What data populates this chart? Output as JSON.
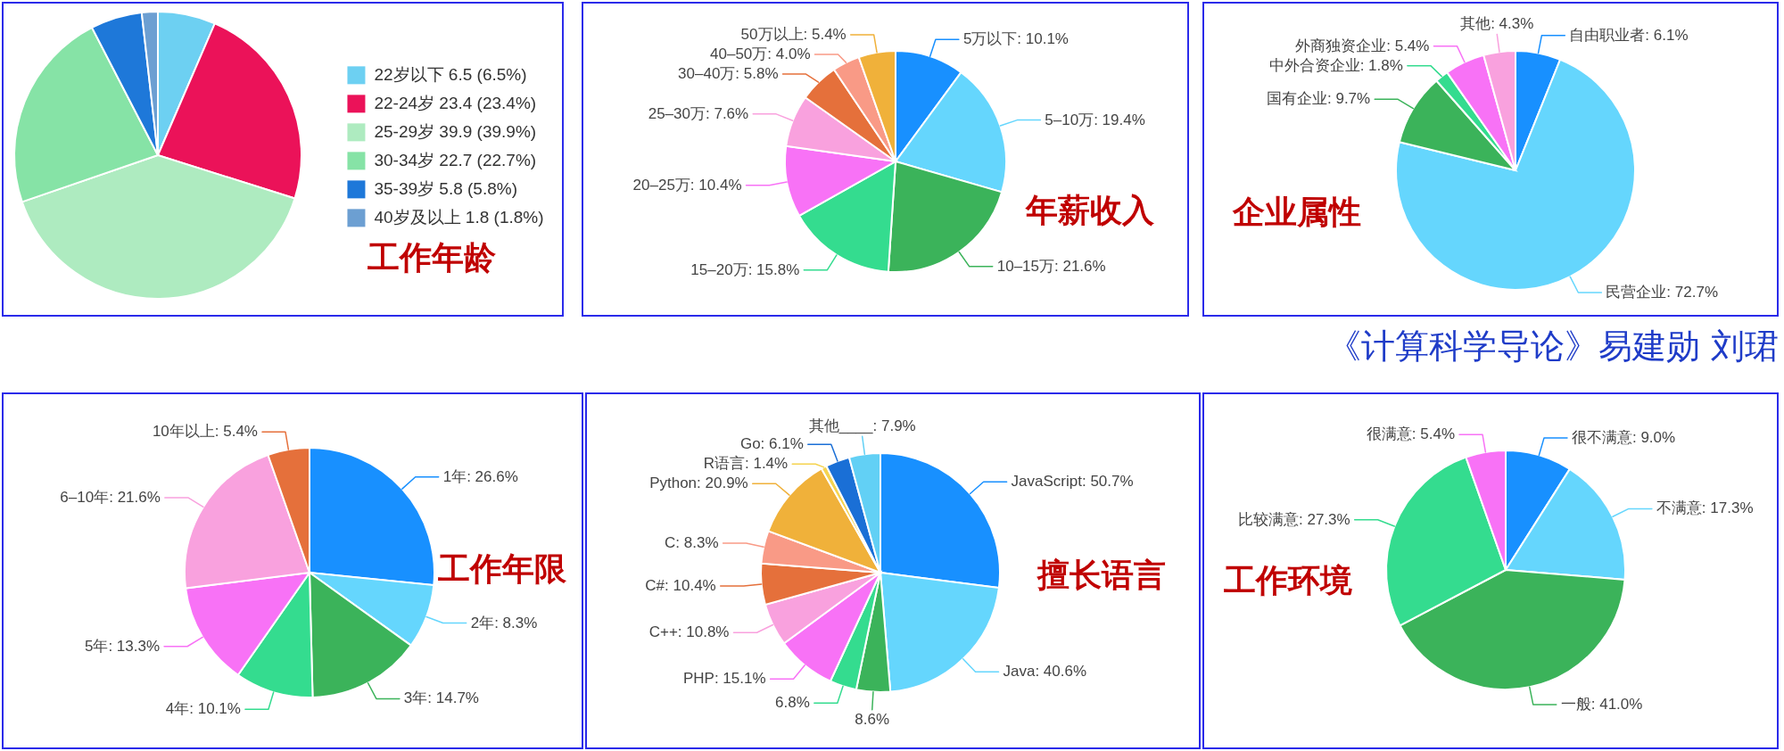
{
  "chart_data": [
    {
      "type": "pie",
      "title": "工作年龄",
      "categories": [
        "22岁以下",
        "22-24岁",
        "25-29岁",
        "30-34岁",
        "35-39岁",
        "40岁及以上"
      ],
      "values": [
        6.5,
        23.4,
        39.9,
        22.7,
        5.8,
        1.8
      ],
      "value_labels": [
        "6.5 (6.5%)",
        "23.4 (23.4%)",
        "39.9 (39.9%)",
        "22.7 (22.7%)",
        "5.8 (5.8%)",
        "1.8 (1.8%)"
      ],
      "colors": [
        "#6dd0f2",
        "#eb1259",
        "#aeebc0",
        "#86e3a6",
        "#1e78d9",
        "#6c9fd2"
      ],
      "legend": "right"
    },
    {
      "type": "pie",
      "title": "年薪收入",
      "categories": [
        "5万以下",
        "5–10万",
        "10–15万",
        "15–20万",
        "20–25万",
        "25–30万",
        "30–40万",
        "40–50万",
        "50万以上"
      ],
      "values": [
        10.1,
        19.4,
        21.6,
        15.8,
        10.4,
        7.6,
        5.8,
        4.0,
        5.4
      ],
      "value_labels": [
        "10.1%",
        "19.4%",
        "21.6%",
        "15.8%",
        "10.4%",
        "7.6%",
        "5.8%",
        "4.0%",
        "5.4%"
      ],
      "colors": [
        "#1890ff",
        "#65d6fd",
        "#3bb35a",
        "#34dc8f",
        "#f872f6",
        "#f9a1de",
        "#e5703b",
        "#f99a86",
        "#f0b13a"
      ]
    },
    {
      "type": "pie",
      "title": "企业属性",
      "categories": [
        "自由职业者",
        "民营企业",
        "国有企业",
        "中外合资企业",
        "外商独资企业",
        "其他"
      ],
      "values": [
        6.1,
        72.7,
        9.7,
        1.8,
        5.4,
        4.3
      ],
      "value_labels": [
        "6.1%",
        "72.7%",
        "9.7%",
        "1.8%",
        "5.4%",
        "4.3%"
      ],
      "colors": [
        "#1890ff",
        "#65d6fd",
        "#3bb35a",
        "#34dc8f",
        "#f872f6",
        "#f9a1de"
      ],
      "annotations": [
        "《计算科学导论》易建勋 刘珺"
      ]
    },
    {
      "type": "pie",
      "title": "工作年限",
      "categories": [
        "1年",
        "2年",
        "3年",
        "4年",
        "5年",
        "6–10年",
        "10年以上"
      ],
      "values": [
        26.6,
        8.3,
        14.7,
        10.1,
        13.3,
        21.6,
        5.4
      ],
      "value_labels": [
        "26.6%",
        "8.3%",
        "14.7%",
        "10.1%",
        "13.3%",
        "21.6%",
        "5.4%"
      ],
      "colors": [
        "#1890ff",
        "#65d6fd",
        "#3bb35a",
        "#34dc8f",
        "#f872f6",
        "#f9a1de",
        "#e5703b"
      ]
    },
    {
      "type": "pie",
      "title": "擅长语言",
      "categories": [
        "JavaScript",
        "Java",
        null,
        null,
        "PHP",
        "C++",
        "C#",
        "C",
        "Python",
        "R语言",
        "Go",
        "其他____"
      ],
      "values": [
        50.7,
        40.6,
        8.6,
        6.8,
        15.1,
        10.8,
        10.4,
        8.3,
        20.9,
        1.4,
        6.1,
        7.9
      ],
      "value_labels": [
        "50.7%",
        "40.6%",
        "8.6%",
        "6.8%",
        "15.1%",
        "10.8%",
        "10.4%",
        "8.3%",
        "20.9%",
        "1.4%",
        "6.1%",
        "7.9%"
      ],
      "colors": [
        "#1890ff",
        "#65d6fd",
        "#3bb35a",
        "#34dc8f",
        "#f872f6",
        "#f9a1de",
        "#e5703b",
        "#f99a86",
        "#f0b13a",
        "#f5d34f",
        "#1a6fd6",
        "#62d0f5"
      ]
    },
    {
      "type": "pie",
      "title": "工作环境",
      "categories": [
        "很不满意",
        "不满意",
        "一般",
        "比较满意",
        "很满意"
      ],
      "values": [
        9.0,
        17.3,
        41.0,
        27.3,
        5.4
      ],
      "value_labels": [
        "9.0%",
        "17.3%",
        "41.0%",
        "27.3%",
        "5.4%"
      ],
      "colors": [
        "#1890ff",
        "#65d6fd",
        "#3bb35a",
        "#34dc8f",
        "#f872f6"
      ]
    }
  ]
}
